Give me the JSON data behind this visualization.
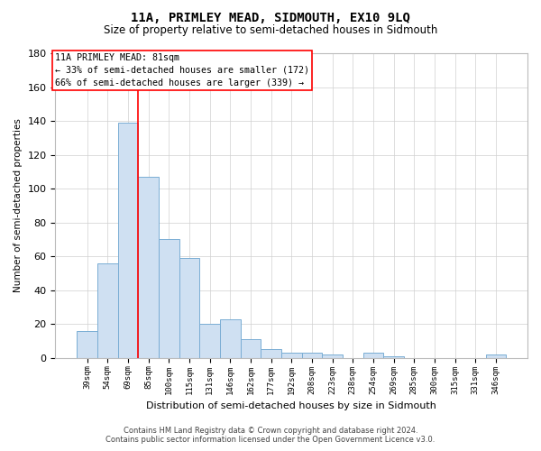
{
  "title": "11A, PRIMLEY MEAD, SIDMOUTH, EX10 9LQ",
  "subtitle": "Size of property relative to semi-detached houses in Sidmouth",
  "xlabel": "Distribution of semi-detached houses by size in Sidmouth",
  "ylabel": "Number of semi-detached properties",
  "categories": [
    "39sqm",
    "54sqm",
    "69sqm",
    "85sqm",
    "100sqm",
    "115sqm",
    "131sqm",
    "146sqm",
    "162sqm",
    "177sqm",
    "192sqm",
    "208sqm",
    "223sqm",
    "238sqm",
    "254sqm",
    "269sqm",
    "285sqm",
    "300sqm",
    "315sqm",
    "331sqm",
    "346sqm"
  ],
  "values": [
    16,
    56,
    139,
    107,
    70,
    59,
    20,
    23,
    11,
    5,
    3,
    3,
    2,
    0,
    3,
    1,
    0,
    0,
    0,
    0,
    2
  ],
  "bar_color": "#cfe0f2",
  "bar_edge_color": "#7aadd4",
  "grid_color": "#d0d0d0",
  "property_label": "11A PRIMLEY MEAD: 81sqm",
  "pct_smaller": 33,
  "count_smaller": 172,
  "pct_larger": 66,
  "count_larger": 339,
  "vline_color": "red",
  "ylim": [
    0,
    180
  ],
  "yticks": [
    0,
    20,
    40,
    60,
    80,
    100,
    120,
    140,
    160,
    180
  ],
  "footnote1": "Contains HM Land Registry data © Crown copyright and database right 2024.",
  "footnote2": "Contains public sector information licensed under the Open Government Licence v3.0.",
  "background_color": "#ffffff",
  "fig_width": 6.0,
  "fig_height": 5.0
}
